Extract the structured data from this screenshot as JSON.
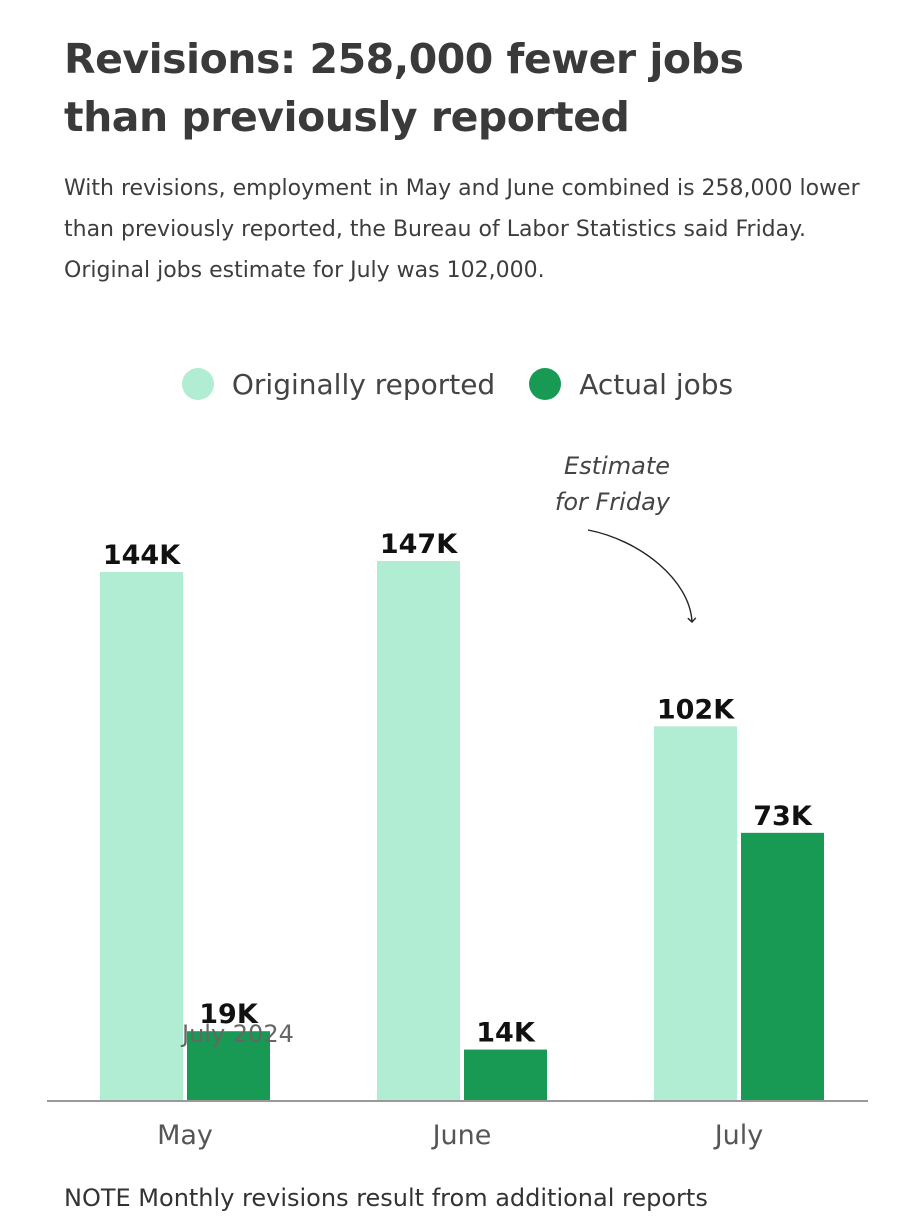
{
  "header": {
    "title_line1": "Revisions: 258,000 fewer jobs",
    "title_line2": "than previously reported",
    "subtitle": "With revisions, employment in May and June combined is 258,000 lower than previously reported, the Bureau of Labor Statistics said Friday. Original jobs estimate for July was 102,000."
  },
  "annotation": {
    "line1": "Estimate",
    "line2": "for Friday"
  },
  "overlay_text": "July 2024",
  "note": "NOTE Monthly revisions result from additional reports",
  "colors": {
    "original": "#b1edd2",
    "actual": "#189a55",
    "axis": "#999999"
  },
  "chart_data": {
    "type": "bar",
    "title": "Revisions: 258,000 fewer jobs than previously reported",
    "xlabel": "",
    "ylabel": "",
    "categories": [
      "May",
      "June",
      "July"
    ],
    "series": [
      {
        "name": "Originally reported",
        "values": [
          144,
          147,
          102
        ],
        "labels": [
          "144K",
          "147K",
          "102K"
        ],
        "color": "#b1edd2"
      },
      {
        "name": "Actual jobs",
        "values": [
          19,
          14,
          73
        ],
        "labels": [
          "19K",
          "14K",
          "73K"
        ],
        "color": "#189a55"
      }
    ],
    "ylim": [
      0,
      147
    ],
    "grid": false,
    "legend": "top-center",
    "unit": "thousands of jobs"
  }
}
